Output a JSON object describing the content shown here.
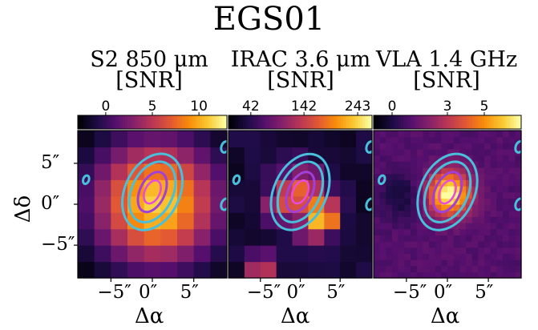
{
  "figure": {
    "title": "EGS01",
    "x_axis_label": "Δα",
    "y_axis_label": "Δδ"
  },
  "chart_data": [
    {
      "type": "heatmap",
      "title": "S2 850 μm",
      "subtitle": "[SNR]",
      "colormap": "inferno",
      "colorbar_ticks": [
        "0",
        "5",
        "10"
      ],
      "colorbar_tick_values": [
        0,
        5,
        10
      ],
      "colorbar_range": [
        -3,
        13
      ],
      "x_tick_labels": [
        "−5″",
        "0″",
        "5″"
      ],
      "x_ticks": [
        -5,
        0,
        5
      ],
      "y_tick_labels": [
        "5″",
        "0″",
        "−5″"
      ],
      "y_ticks": [
        5,
        0,
        -5
      ],
      "xlim": [
        -9,
        9
      ],
      "ylim": [
        -9,
        9
      ],
      "pixel_size": 2,
      "contour_color": "#48c0dc",
      "contour_peak_offset": [
        0,
        1.5
      ]
    },
    {
      "type": "heatmap",
      "title": "IRAC 3.6 μm",
      "subtitle": "[SNR]",
      "colormap": "inferno",
      "colorbar_ticks": [
        "42",
        "142",
        "243"
      ],
      "colorbar_tick_values": [
        42,
        142,
        243
      ],
      "colorbar_range": [
        0,
        270
      ],
      "x_tick_labels": [
        "−5″",
        "0″",
        "5″"
      ],
      "x_ticks": [
        -5,
        0,
        5
      ],
      "y_tick_labels": [],
      "xlim": [
        -9,
        9
      ],
      "ylim": [
        -9,
        9
      ],
      "pixel_size": 2,
      "contour_color": "#48c0dc",
      "contour_peak_offset": [
        0,
        1.5
      ]
    },
    {
      "type": "heatmap",
      "title": "VLA 1.4 GHz",
      "subtitle": "[SNR]",
      "colormap": "inferno",
      "colorbar_ticks": [
        "0",
        "3",
        "5"
      ],
      "colorbar_tick_values": [
        0,
        3,
        5
      ],
      "colorbar_range": [
        -1,
        7
      ],
      "x_tick_labels": [
        "−5″",
        "0″",
        "5″"
      ],
      "x_ticks": [
        -5,
        0,
        5
      ],
      "y_tick_labels": [],
      "xlim": [
        -9,
        9
      ],
      "ylim": [
        -9,
        9
      ],
      "pixel_size": 0.75,
      "contour_color": "#48c0dc",
      "contour_peak_offset": [
        0,
        1.5
      ]
    }
  ]
}
